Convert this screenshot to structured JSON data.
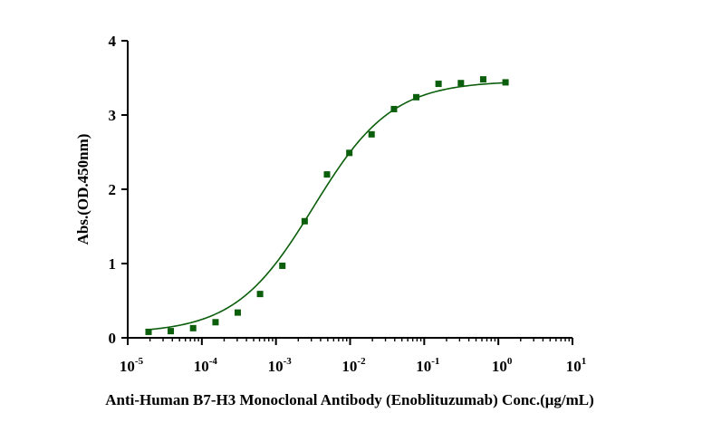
{
  "chart_data": {
    "type": "scatter",
    "title": "",
    "xlabel": "Anti-Human B7-H3 Monoclonal Antibody (Enoblituzumab) Conc.(μg/mL)",
    "ylabel": "Abs.(OD.450nm)",
    "x_scale": "log10",
    "xlim": [
      1e-05,
      10
    ],
    "ylim": [
      0,
      4
    ],
    "x_ticks": [
      {
        "base": "10",
        "exp": "-5"
      },
      {
        "base": "10",
        "exp": "-4"
      },
      {
        "base": "10",
        "exp": "-3"
      },
      {
        "base": "10",
        "exp": "-2"
      },
      {
        "base": "10",
        "exp": "-1"
      },
      {
        "base": "10",
        "exp": "0"
      },
      {
        "base": "10",
        "exp": "1"
      }
    ],
    "y_ticks": [
      "0",
      "1",
      "2",
      "3",
      "4"
    ],
    "color": "#0b5e0b",
    "series": [
      {
        "name": "Enoblituzumab",
        "marker": "square",
        "x": [
          1.91e-05,
          3.81e-05,
          7.63e-05,
          0.000153,
          0.000305,
          0.00061,
          0.00122,
          0.00244,
          0.00488,
          0.00977,
          0.0195,
          0.0391,
          0.0781,
          0.156,
          0.3125,
          0.625,
          1.25
        ],
        "y": [
          0.08,
          0.09,
          0.13,
          0.21,
          0.34,
          0.59,
          0.97,
          1.57,
          2.2,
          2.49,
          2.74,
          3.08,
          3.24,
          3.42,
          3.43,
          3.48,
          3.44
        ]
      }
    ],
    "fit": {
      "type": "4PL",
      "bottom": 0.06,
      "top": 3.46,
      "ec50": 0.0032,
      "hill": 0.82
    }
  }
}
